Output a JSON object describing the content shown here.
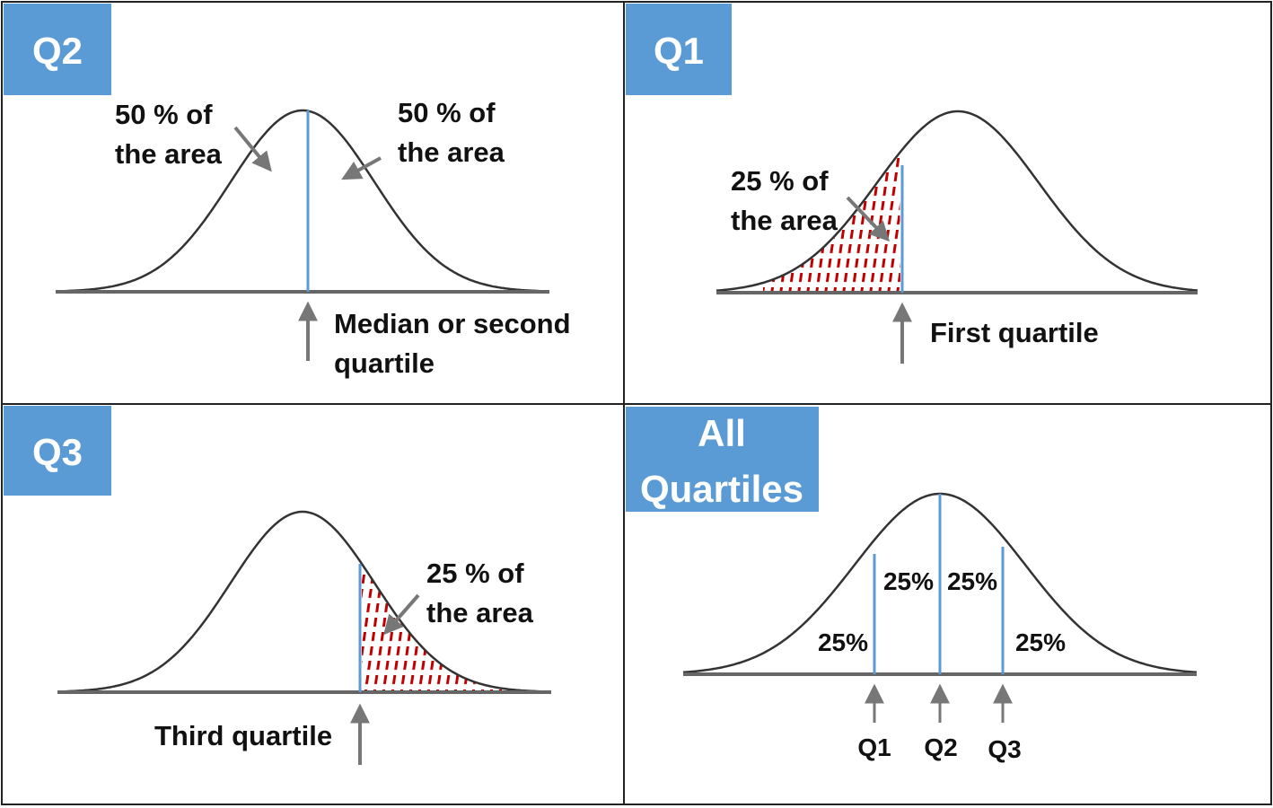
{
  "colors": {
    "title_box": "#5b9bd5",
    "title_text": "#ffffff",
    "curve": "#333333",
    "baseline": "#666666",
    "divider_line": "#5b9bd5",
    "shading": "#c00000",
    "arrow": "#777777",
    "border": "#222222",
    "text": "#111111"
  },
  "panels": {
    "q2": {
      "title": "Q2",
      "left_area_label": [
        "50 % of",
        "the area"
      ],
      "right_area_label": [
        "50 % of",
        "the area"
      ],
      "marker_label": [
        "Median or second",
        "quartile"
      ]
    },
    "q1": {
      "title": "Q1",
      "area_label": [
        "25 % of",
        "the area"
      ],
      "marker_label": "First quartile"
    },
    "q3": {
      "title": "Q3",
      "area_label": [
        "25 % of",
        "the area"
      ],
      "marker_label": "Third quartile"
    },
    "all": {
      "title": [
        "All",
        "Quartiles"
      ],
      "segment_labels": [
        "25%",
        "25%",
        "25%",
        "25%"
      ],
      "marker_labels": [
        "Q1",
        "Q2",
        "Q3"
      ]
    }
  }
}
